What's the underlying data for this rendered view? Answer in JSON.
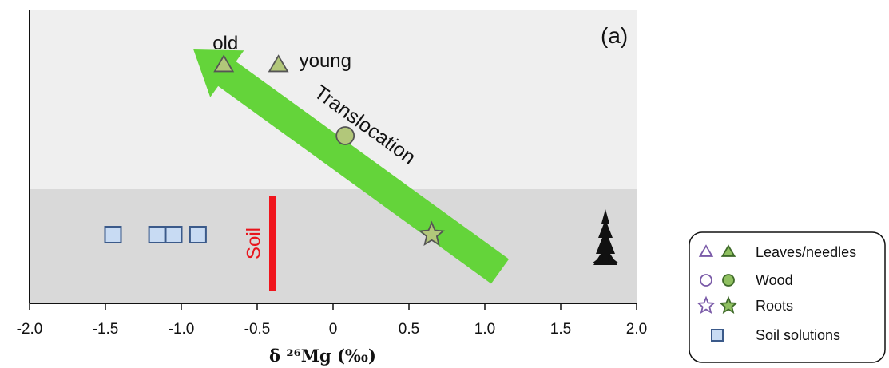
{
  "chart_data": {
    "type": "scatter",
    "panel_label": "(a)",
    "xlabel": "δ ²⁶Mg (‰)",
    "ylabel": "",
    "xlim": [
      -2.0,
      2.0
    ],
    "x_ticks": [
      -2.0,
      -1.5,
      -1.0,
      -0.5,
      0,
      0.5,
      1.0,
      1.5,
      2.0
    ],
    "x_tick_labels": [
      "-2.0",
      "-1.5",
      "-1.0",
      "-0.5",
      "0",
      "0.5",
      "1.0",
      "1.5",
      "2.0"
    ],
    "series": [
      {
        "name": "Leaves/needles",
        "marker": "triangle",
        "points": [
          {
            "x": -0.72,
            "label": "old"
          },
          {
            "x": -0.36,
            "label": "young"
          }
        ]
      },
      {
        "name": "Wood",
        "marker": "circle",
        "points": [
          {
            "x": 0.08
          }
        ]
      },
      {
        "name": "Roots",
        "marker": "star",
        "points": [
          {
            "x": 0.65
          }
        ]
      },
      {
        "name": "Soil solutions",
        "marker": "square",
        "points": [
          {
            "x": -1.45
          },
          {
            "x": -1.16
          },
          {
            "x": -1.05
          },
          {
            "x": -0.89
          }
        ]
      }
    ],
    "soil_line": {
      "x": -0.4,
      "label": "Soil"
    },
    "arrow": {
      "label": "Translocation",
      "from_x": 1.1,
      "to_x": -0.92
    },
    "colors": {
      "upper_band": "#efefef",
      "lower_band": "#d9d9d9",
      "marker_fill": "#b2c77a",
      "marker_stroke": "#555555",
      "square_fill": "#c8dbf3",
      "square_stroke": "#3b5a8a",
      "arrow": "#64d43a",
      "soil_line": "#f0141c",
      "legend_open": "#7a5aa8",
      "legend_filled": "#8fc060"
    }
  },
  "legend": {
    "items": [
      {
        "label": "Leaves/needles",
        "icon": "triangle"
      },
      {
        "label": "Wood",
        "icon": "circle"
      },
      {
        "label": "Roots",
        "icon": "star"
      },
      {
        "label": "Soil solutions",
        "icon": "square"
      }
    ]
  }
}
